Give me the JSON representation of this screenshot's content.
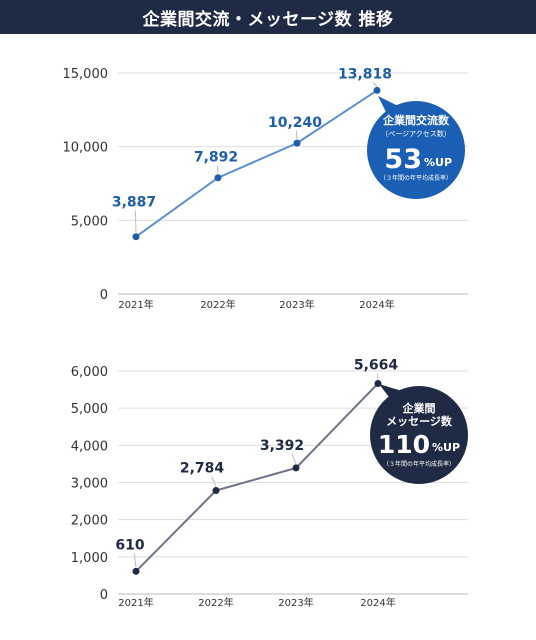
{
  "header": {
    "title": "企業間交流・メッセージ数 推移"
  },
  "chart_data": [
    {
      "type": "line",
      "categories": [
        "2021年",
        "2022年",
        "2023年",
        "2024年"
      ],
      "values": [
        3887,
        7892,
        10240,
        13818
      ],
      "value_labels": [
        "3,887",
        "7,892",
        "10,240",
        "13,818"
      ],
      "yticks": [
        "0",
        "5,000",
        "10,000",
        "15,000"
      ],
      "ytick_values": [
        0,
        5000,
        10000,
        15000
      ],
      "ylim": [
        0,
        15000
      ],
      "color": "#5a8fd0",
      "label_color": "#1f5fa8",
      "callout": {
        "title": "企業間交流数",
        "subtitle": "（ページアクセス数）",
        "value": "53",
        "unit": "%UP",
        "note": "（３年間の年平均成長率）",
        "color": "#1a5fb4"
      }
    },
    {
      "type": "line",
      "categories": [
        "2021年",
        "2022年",
        "2023年",
        "2024年"
      ],
      "values": [
        610,
        2784,
        3392,
        5664
      ],
      "value_labels": [
        "610",
        "2,784",
        "3,392",
        "5,664"
      ],
      "yticks": [
        "0",
        "1,000",
        "2,000",
        "3,000",
        "4,000",
        "5,000",
        "6,000"
      ],
      "ytick_values": [
        0,
        1000,
        2000,
        3000,
        4000,
        5000,
        6000
      ],
      "ylim": [
        0,
        6000
      ],
      "color": "#6b7489",
      "label_color": "#1f2a44",
      "callout": {
        "title_line1": "企業間",
        "title_line2": "メッセージ数",
        "value": "110",
        "unit": "%UP",
        "note": "（３年間の年平均成長率）",
        "color": "#1f2a44"
      }
    }
  ]
}
